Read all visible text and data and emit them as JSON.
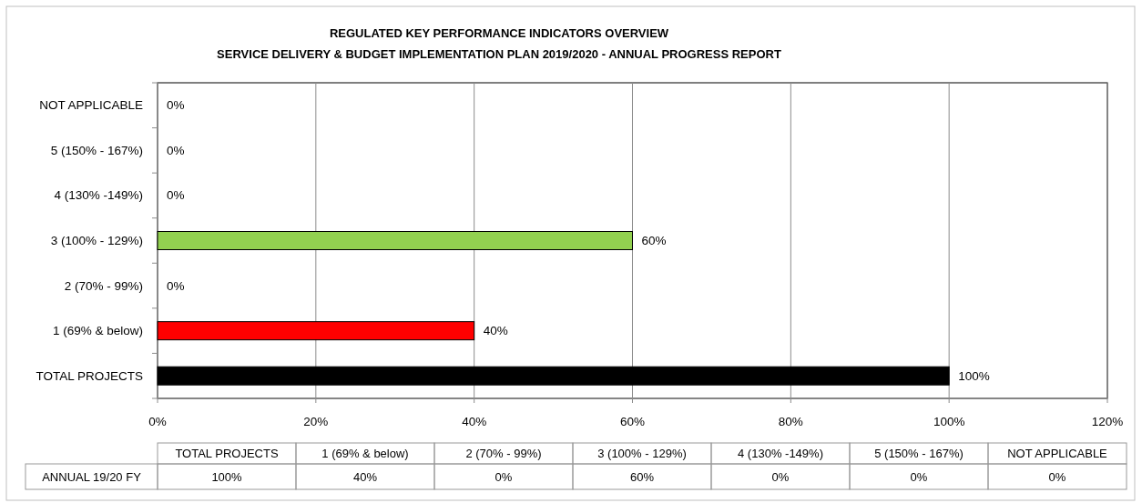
{
  "chart_data": {
    "type": "bar",
    "orientation": "horizontal",
    "title": "REGULATED KEY PERFORMANCE INDICATORS OVERVIEW",
    "subtitle": "SERVICE DELIVERY & BUDGET IMPLEMENTATION PLAN 2019/2020 - ANNUAL PROGRESS REPORT",
    "categories": [
      "NOT APPLICABLE",
      "5 (150% - 167%)",
      "4 (130% -149%)",
      "3 (100% - 129%)",
      "2 (70% - 99%)",
      "1 (69% & below)",
      "TOTAL PROJECTS"
    ],
    "series": [
      {
        "name": "ANNUAL 19/20 FY",
        "values": [
          0,
          0,
          0,
          60,
          0,
          40,
          100
        ],
        "colors": [
          null,
          null,
          null,
          "#92d050",
          null,
          "#ff0000",
          "#000000"
        ],
        "value_labels": [
          "0%",
          "0%",
          "0%",
          "60%",
          "0%",
          "40%",
          "100%"
        ]
      }
    ],
    "xlim": [
      0,
      120
    ],
    "xticks": [
      {
        "value": 0,
        "label": "0%"
      },
      {
        "value": 20,
        "label": "20%"
      },
      {
        "value": 40,
        "label": "40%"
      },
      {
        "value": 60,
        "label": "60%"
      },
      {
        "value": 80,
        "label": "80%"
      },
      {
        "value": 100,
        "label": "100%"
      },
      {
        "value": 120,
        "label": "120%"
      }
    ],
    "grid": "x"
  }
}
